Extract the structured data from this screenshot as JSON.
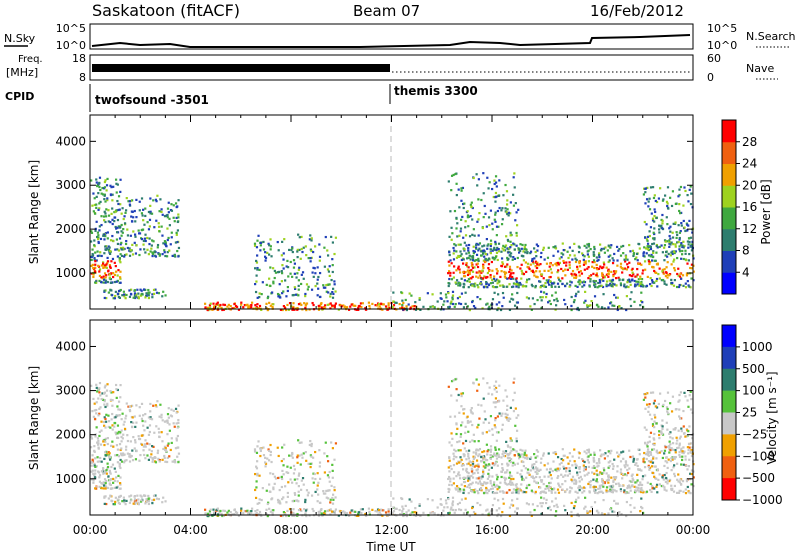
{
  "header": {
    "station": "Saskatoon (fitACF)",
    "beam": "Beam 07",
    "date": "16/Feb/2012"
  },
  "noise_panel": {
    "left_label": "N.Sky",
    "right_label": "N.Search",
    "ticks_left": [
      "10^5",
      "10^0"
    ],
    "ticks_right": [
      "10^5",
      "10^0"
    ]
  },
  "freq_panel": {
    "left_label_1": "Freq.",
    "left_label_2": "[MHz]",
    "ticks_left": [
      "18",
      "8"
    ],
    "ticks_right": [
      "60",
      "0"
    ],
    "right_label": "Nave"
  },
  "cpid_panel": {
    "label": "CPID",
    "modes": [
      {
        "name": "twofsound -3501",
        "start_hour": 0
      },
      {
        "name": "themis 3300",
        "start_hour": 12
      }
    ]
  },
  "chart_data": [
    {
      "type": "heatmap",
      "parameter": "power",
      "ylabel": "Slant Range [km]",
      "ylim": [
        180,
        4600
      ],
      "yticks": [
        "1000",
        "2000",
        "3000",
        "4000"
      ],
      "colorbar": {
        "label": "Power [dB]",
        "ticks": [
          "4",
          "8",
          "12",
          "16",
          "20",
          "24",
          "28"
        ],
        "colors": [
          "#0000ff",
          "#1f3fb8",
          "#2d7d6e",
          "#3fa83f",
          "#9ed21f",
          "#f0a000",
          "#f06010",
          "#ff0000"
        ]
      }
    },
    {
      "type": "heatmap",
      "parameter": "velocity",
      "ylabel": "Slant Range [km]",
      "ylim": [
        180,
        4600
      ],
      "yticks": [
        "1000",
        "2000",
        "3000",
        "4000"
      ],
      "xlabel": "Time UT",
      "xticks": [
        "00:00",
        "04:00",
        "08:00",
        "12:00",
        "16:00",
        "20:00",
        "00:00"
      ],
      "xlim": [
        0,
        24
      ],
      "colorbar": {
        "label": "Velocity [m s⁻¹]",
        "ticks": [
          "1000",
          "500",
          "100",
          "25",
          "−25",
          "−100",
          "−500",
          "−1000"
        ],
        "colors": [
          "#0000ff",
          "#1f3fb8",
          "#2d7d6e",
          "#55c23a",
          "#c8c8c8",
          "#f0a000",
          "#f06010",
          "#ff0000"
        ]
      }
    }
  ]
}
